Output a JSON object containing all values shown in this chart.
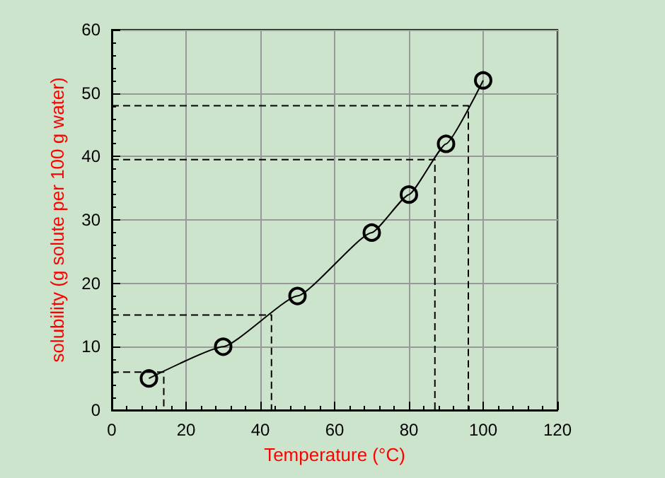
{
  "chart_data": {
    "type": "line",
    "xlabel": "Temperature (°C)",
    "ylabel": "solubility (g solute per 100 g water)",
    "xlim": [
      0,
      120
    ],
    "xticks": [
      0,
      20,
      40,
      60,
      80,
      100,
      120
    ],
    "ylim": [
      0,
      60
    ],
    "yticks": [
      0,
      10,
      20,
      30,
      40,
      50,
      60
    ],
    "grid": true,
    "series": [
      {
        "color": "#000000",
        "marker": "circle",
        "line_style": "solid",
        "x": [
          10,
          30,
          50,
          70,
          80,
          90,
          100
        ],
        "values": [
          5,
          10,
          18,
          28,
          34,
          42,
          52
        ]
      },
      {
        "color": "#000000",
        "marker": "none",
        "line_style": "dashed",
        "x": [
          0,
          14,
          14
        ],
        "values": [
          6,
          6,
          0
        ]
      },
      {
        "color": "#000000",
        "marker": "none",
        "line_style": "dashed",
        "x": [
          0,
          43,
          43
        ],
        "values": [
          15,
          15,
          0
        ]
      },
      {
        "color": "#000000",
        "marker": "none",
        "line_style": "dashed",
        "x": [
          0,
          87,
          87
        ],
        "values": [
          39.5,
          39.5,
          0
        ]
      },
      {
        "color": "#000000",
        "marker": "none",
        "line_style": "dashed",
        "x": [
          0,
          96,
          96
        ],
        "values": [
          48,
          48,
          0
        ]
      }
    ]
  }
}
